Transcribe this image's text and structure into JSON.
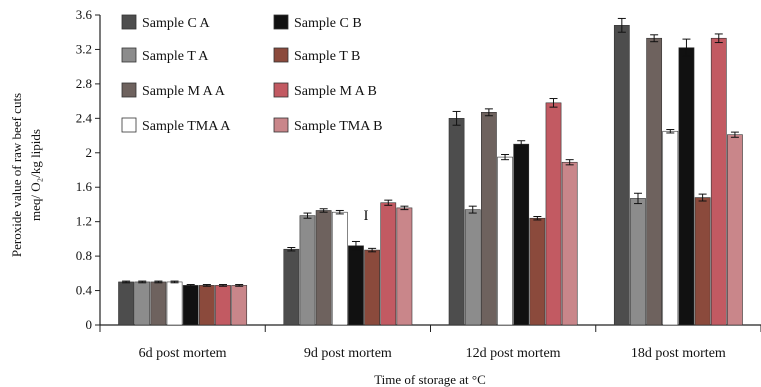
{
  "chart_data": {
    "type": "bar",
    "title": "",
    "xlabel": "Time of storage at °C",
    "ylabel_lines": [
      "Peroxide value of raw beef cuts",
      "meq/ O₂/kg lipids"
    ],
    "ylim": [
      0,
      3.6
    ],
    "yticks": [
      "0",
      "0.4",
      "0.8",
      "1.2",
      "1.6",
      "2",
      "2.4",
      "2.8",
      "3.2",
      "3.6"
    ],
    "grid": false,
    "legend_position": "top-left, inside plot, two columns",
    "categories": [
      "6d post mortem",
      "9d post mortem",
      "12d post mortem",
      "18d post mortem"
    ],
    "series": [
      {
        "name": "Sample C A",
        "color": "#4d4d4d",
        "values": [
          0.5,
          0.88,
          2.4,
          3.48
        ],
        "errors": [
          0.01,
          0.02,
          0.08,
          0.08
        ]
      },
      {
        "name": "Sample T A",
        "color": "#8c8c8c",
        "values": [
          0.5,
          1.27,
          1.34,
          1.47
        ],
        "errors": [
          0.01,
          0.03,
          0.04,
          0.06
        ]
      },
      {
        "name": "Sample M A A",
        "color": "#6e625e",
        "values": [
          0.5,
          1.33,
          2.47,
          3.33
        ],
        "errors": [
          0.01,
          0.02,
          0.04,
          0.04
        ]
      },
      {
        "name": "Sample TMA A",
        "color": "#ffffff",
        "values": [
          0.5,
          1.31,
          1.95,
          2.25
        ],
        "errors": [
          0.01,
          0.02,
          0.03,
          0.02
        ]
      },
      {
        "name": "Sample C B",
        "color": "#111111",
        "values": [
          0.46,
          0.92,
          2.1,
          3.22
        ],
        "errors": [
          0.01,
          0.05,
          0.04,
          0.1
        ]
      },
      {
        "name": "Sample T B",
        "color": "#8b4a3c",
        "values": [
          0.46,
          0.87,
          1.24,
          1.48
        ],
        "errors": [
          0.01,
          0.02,
          0.02,
          0.04
        ]
      },
      {
        "name": "Sample M A B",
        "color": "#c25a62",
        "values": [
          0.46,
          1.42,
          2.58,
          3.33
        ],
        "errors": [
          0.01,
          0.03,
          0.05,
          0.05
        ]
      },
      {
        "name": "Sample TMA B",
        "color": "#c9868a",
        "values": [
          0.46,
          1.36,
          1.89,
          2.21
        ],
        "errors": [
          0.01,
          0.02,
          0.03,
          0.03
        ]
      }
    ],
    "annotations": [
      "I"
    ]
  }
}
